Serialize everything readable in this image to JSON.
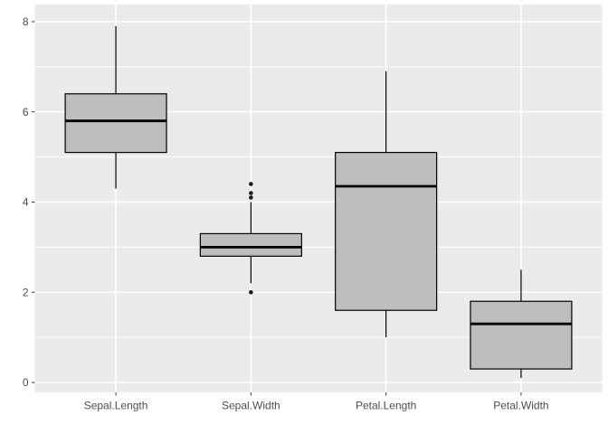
{
  "chart_data": {
    "type": "boxplot",
    "title": "",
    "xlabel": "",
    "ylabel": "",
    "legend": false,
    "grid": true,
    "categories": [
      "Sepal.Length",
      "Sepal.Width",
      "Petal.Length",
      "Petal.Width"
    ],
    "series": [
      {
        "name": "Sepal.Length",
        "min": 4.3,
        "q1": 5.1,
        "median": 5.8,
        "q3": 6.4,
        "max": 7.9,
        "outliers": []
      },
      {
        "name": "Sepal.Width",
        "min": 2.2,
        "q1": 2.8,
        "median": 3.0,
        "q3": 3.3,
        "max": 4.0,
        "outliers": [
          2.0,
          4.1,
          4.2,
          4.4
        ]
      },
      {
        "name": "Petal.Length",
        "min": 1.0,
        "q1": 1.6,
        "median": 4.35,
        "q3": 5.1,
        "max": 6.9,
        "outliers": []
      },
      {
        "name": "Petal.Width",
        "min": 0.1,
        "q1": 0.3,
        "median": 1.3,
        "q3": 1.8,
        "max": 2.5,
        "outliers": []
      }
    ],
    "y_major_ticks": [
      0,
      2,
      4,
      6,
      8
    ],
    "y_minor_ticks": [
      1,
      3,
      5,
      7
    ],
    "ylim": [
      -0.22,
      8.38
    ],
    "xlim": [
      0.4,
      4.6
    ],
    "box_width_units": 0.75
  },
  "style": {
    "page_bg": "#FFFFFF",
    "panel_bg": "#EBEBEB",
    "grid_color": "#FFFFFF",
    "box_fill": "#BEBEBE",
    "box_stroke": "#000000",
    "median_color": "#000000",
    "outlier_color": "#1A1A1A",
    "tick_color": "#333333",
    "text_color": "#4D4D4D"
  }
}
